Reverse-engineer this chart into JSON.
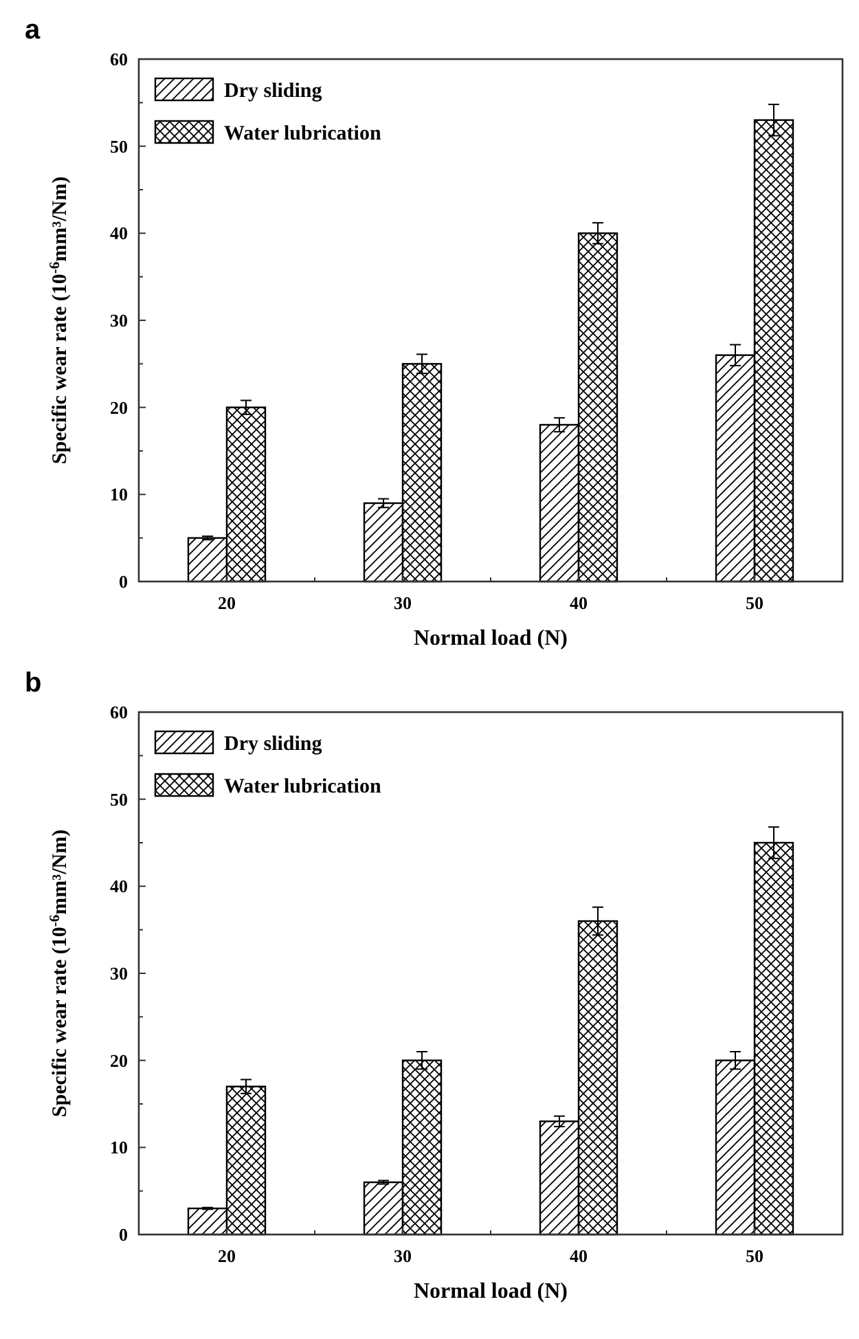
{
  "chart_data": [
    {
      "type": "bar",
      "title": "a",
      "xlabel": "Normal load (N)",
      "ylabel": "Specific wear rate (10$^{-6}$mm³/Nm)",
      "categories": [
        "20",
        "30",
        "40",
        "50"
      ],
      "ylim": [
        0,
        60
      ],
      "yticks": [
        0,
        {
          "value": 5,
          "label": null
        },
        10,
        {
          "value": 15,
          "label": null
        },
        20,
        {
          "value": 25,
          "label": null
        },
        30,
        {
          "value": 35,
          "label": null
        },
        40,
        {
          "value": 45,
          "label": null
        },
        50,
        {
          "value": 55,
          "label": null
        },
        60
      ],
      "legend": "top left",
      "series": [
        {
          "name": "Dry sliding",
          "color": "#000000",
          "values": [
            5,
            9,
            18,
            26
          ],
          "errors": [
            0.2,
            0.5,
            0.8,
            1.2
          ]
        },
        {
          "name": "Water lubrication",
          "color": "#000000",
          "values": [
            20,
            25,
            40,
            53
          ],
          "errors": [
            0.8,
            1.1,
            1.2,
            1.8
          ]
        }
      ]
    },
    {
      "type": "bar",
      "title": "b",
      "xlabel": "Normal load (N)",
      "ylabel": "Specific wear rate (10$^{-6}$mm³/Nm)",
      "categories": [
        "20",
        "30",
        "40",
        "50"
      ],
      "ylim": [
        0,
        60
      ],
      "yticks": [
        0,
        {
          "value": 5,
          "label": null
        },
        10,
        {
          "value": 15,
          "label": null
        },
        20,
        {
          "value": 25,
          "label": null
        },
        30,
        {
          "value": 35,
          "label": null
        },
        40,
        {
          "value": 45,
          "label": null
        },
        50,
        {
          "value": 55,
          "label": null
        },
        60
      ],
      "legend": "top left",
      "series": [
        {
          "name": "Dry sliding",
          "color": "#000000",
          "values": [
            3,
            6,
            13,
            20
          ],
          "errors": [
            0.1,
            0.2,
            0.6,
            1.0
          ]
        },
        {
          "name": "Water lubrication",
          "color": "#000000",
          "values": [
            17,
            20,
            36,
            45
          ],
          "errors": [
            0.8,
            1.0,
            1.6,
            1.8
          ]
        }
      ]
    }
  ]
}
